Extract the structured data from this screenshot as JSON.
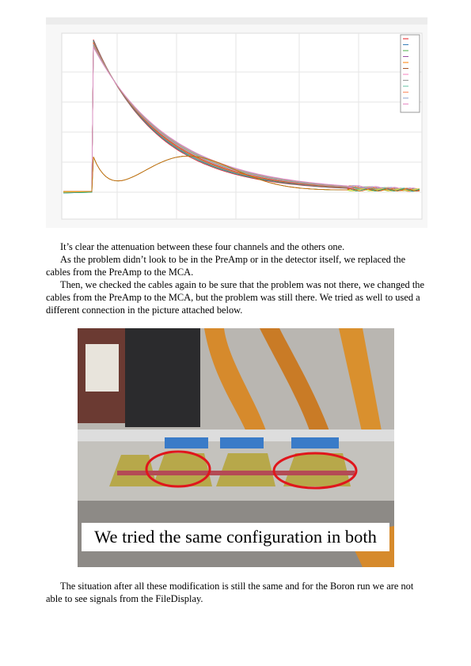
{
  "paragraphs": [
    "It’s clear the attenuation between these four channels and the others one.",
    "As the problem didn’t look to be in the PreAmp or in the detector itself, we replaced the cables from the PreAmp to the MCA.",
    "Then, we checked the cables again to be sure that the problem was not there, we changed the cables from the PreAmp to the MCA, but the problem was still there. We tried as well to used a different connection in the picture attached below.",
    "The situation after all these modification is still the same and for the Boron run we are not able to see signals from the FileDisplay."
  ],
  "photo_caption": "We tried the same configuration in both"
}
